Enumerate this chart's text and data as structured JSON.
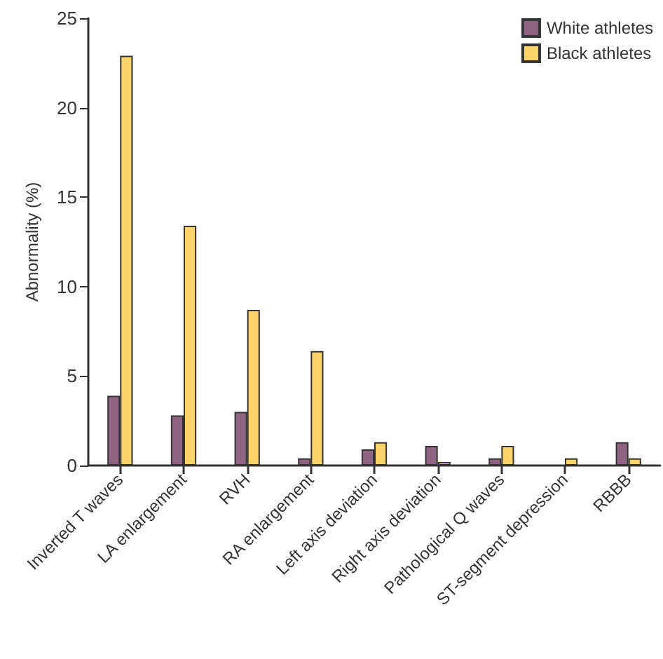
{
  "chart_data": {
    "type": "bar",
    "ylabel": "Abnormality (%)",
    "categories": [
      "Inverted T waves",
      "LA enlargement",
      "RVH",
      "RA enlargement",
      "Left axis deviation",
      "Right axis deviation",
      "Pathological Q waves",
      "ST-segment depression",
      "RBBB"
    ],
    "series": [
      {
        "name": "White athletes",
        "color": "#8e6482",
        "values": [
          3.9,
          2.8,
          3.0,
          0.4,
          0.9,
          1.1,
          0.4,
          null,
          1.3
        ]
      },
      {
        "name": "Black athletes",
        "color": "#fcd46a",
        "values": [
          22.9,
          13.4,
          8.7,
          6.4,
          1.3,
          0.2,
          1.1,
          0.4,
          0.4
        ]
      }
    ],
    "ylim": [
      0,
      25
    ],
    "yticks": [
      0,
      5,
      10,
      15,
      20,
      25
    ],
    "grid": false,
    "legend": "top right"
  }
}
